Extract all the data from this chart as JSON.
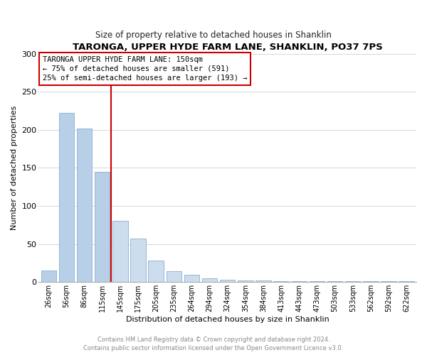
{
  "title": "TARONGA, UPPER HYDE FARM LANE, SHANKLIN, PO37 7PS",
  "subtitle": "Size of property relative to detached houses in Shanklin",
  "xlabel": "Distribution of detached houses by size in Shanklin",
  "ylabel": "Number of detached properties",
  "categories": [
    "26sqm",
    "56sqm",
    "86sqm",
    "115sqm",
    "145sqm",
    "175sqm",
    "205sqm",
    "235sqm",
    "264sqm",
    "294sqm",
    "324sqm",
    "354sqm",
    "384sqm",
    "413sqm",
    "443sqm",
    "473sqm",
    "503sqm",
    "533sqm",
    "562sqm",
    "592sqm",
    "622sqm"
  ],
  "values": [
    15,
    222,
    202,
    145,
    80,
    57,
    28,
    14,
    10,
    5,
    3,
    2,
    2,
    1,
    1,
    1,
    1,
    1,
    1,
    1,
    1
  ],
  "bar_color_left": "#b8cfe8",
  "bar_color_right": "#ccdded",
  "vline_index": 4,
  "vline_color": "#cc0000",
  "annotation_box_text": "TARONGA UPPER HYDE FARM LANE: 150sqm\n← 75% of detached houses are smaller (591)\n25% of semi-detached houses are larger (193) →",
  "footer": "Contains HM Land Registry data © Crown copyright and database right 2024.\nContains public sector information licensed under the Open Government Licence v3.0.",
  "ylim": [
    0,
    300
  ],
  "yticks": [
    0,
    50,
    100,
    150,
    200,
    250,
    300
  ],
  "bg_color": "#ffffff",
  "grid_color": "#d0d8e0"
}
